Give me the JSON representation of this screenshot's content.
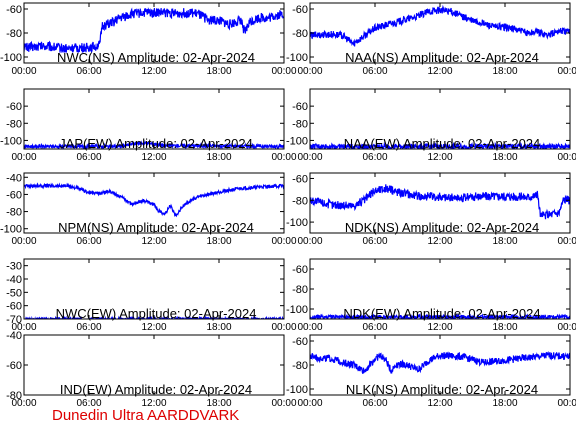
{
  "footer": "Dunedin Ultra AARDDVARK",
  "colors": {
    "trace": "#0000ff",
    "axes": "#000000",
    "footer": "#dd0000",
    "background": "#ffffff"
  },
  "x_ticks": [
    "00:00",
    "06:00",
    "12:00",
    "18:00",
    "00:00"
  ],
  "chart_data": [
    {
      "type": "line",
      "title": "NWC(NS) Amplitude: 02-Apr-2024",
      "ylim": [
        -105,
        -55
      ],
      "yticks": [
        -100,
        -80,
        -60
      ],
      "series": [
        {
          "x": [
            0,
            2,
            4,
            6,
            7,
            7.2,
            8,
            9,
            10,
            11,
            12,
            13,
            14,
            15,
            16,
            17,
            18,
            19,
            20,
            20.4,
            20.8,
            21,
            21.5,
            22,
            22.5,
            23,
            24
          ],
          "y": [
            -92,
            -91,
            -93,
            -92,
            -90,
            -74,
            -72,
            -67,
            -64,
            -63,
            -63,
            -63,
            -64,
            -63,
            -64,
            -69,
            -70,
            -73,
            -69,
            -80,
            -71,
            -70,
            -68,
            -67,
            -68,
            -66,
            -64
          ],
          "noise": 4
        }
      ]
    },
    {
      "type": "line",
      "title": "NAA(NS) Amplitude: 02-Apr-2024",
      "ylim": [
        -105,
        -55
      ],
      "yticks": [
        -100,
        -80,
        -60
      ],
      "series": [
        {
          "x": [
            0,
            2,
            3,
            4,
            6,
            8,
            10,
            11,
            12,
            13,
            14,
            15,
            16,
            17,
            18,
            19,
            20,
            21,
            22,
            23,
            24
          ],
          "y": [
            -82,
            -81,
            -82,
            -89,
            -76,
            -71,
            -66,
            -62,
            -61,
            -62,
            -66,
            -70,
            -72,
            -75,
            -75,
            -77,
            -80,
            -79,
            -82,
            -78,
            -79
          ],
          "noise": 3
        }
      ]
    },
    {
      "type": "line",
      "title": "JAP(EW) Amplitude: 02-Apr-2024",
      "ylim": [
        -110,
        -40
      ],
      "yticks": [
        -100,
        -80,
        -60
      ],
      "series": [
        {
          "x": [
            0,
            9,
            10,
            11,
            12,
            13,
            24
          ],
          "y": [
            -107,
            -107,
            -104,
            -103,
            -104,
            -106,
            -107
          ],
          "noise": 2
        }
      ]
    },
    {
      "type": "line",
      "title": "NAA(EW) Amplitude: 02-Apr-2024",
      "ylim": [
        -110,
        -40
      ],
      "yticks": [
        -100,
        -80,
        -60
      ],
      "series": [
        {
          "x": [
            0,
            24
          ],
          "y": [
            -107,
            -107
          ],
          "noise": 3
        }
      ]
    },
    {
      "type": "line",
      "title": "NPM(NS) Amplitude: 02-Apr-2024",
      "ylim": [
        -105,
        -35
      ],
      "yticks": [
        -100,
        -80,
        -60,
        -40
      ],
      "series": [
        {
          "x": [
            0,
            4,
            5,
            6,
            7,
            8,
            8.5,
            10,
            11,
            12,
            12.5,
            13,
            13.5,
            14,
            14.5,
            15,
            16,
            18,
            20,
            22,
            24
          ],
          "y": [
            -50,
            -50,
            -53,
            -58,
            -59,
            -56,
            -60,
            -71,
            -67,
            -72,
            -80,
            -83,
            -73,
            -85,
            -76,
            -70,
            -63,
            -57,
            -53,
            -51,
            -50
          ],
          "noise": 2
        }
      ]
    },
    {
      "type": "line",
      "title": "NDK(NS) Amplitude: 02-Apr-2024",
      "ylim": [
        -110,
        -55
      ],
      "yticks": [
        -100,
        -80,
        -60
      ],
      "series": [
        {
          "x": [
            0,
            2,
            4,
            5,
            6,
            7,
            8,
            10,
            12,
            14,
            16,
            18,
            20,
            21,
            21.3,
            22,
            23,
            23.4,
            24
          ],
          "y": [
            -80,
            -84,
            -85,
            -80,
            -71,
            -69,
            -72,
            -76,
            -77,
            -78,
            -76,
            -76,
            -77,
            -75,
            -95,
            -93,
            -91,
            -79,
            -80
          ],
          "noise": 4
        }
      ]
    },
    {
      "type": "line",
      "title": "NWC(EW) Amplitude: 02-Apr-2024",
      "ylim": [
        -70,
        -25
      ],
      "yticks": [
        -70,
        -60,
        -50,
        -40,
        -30
      ],
      "series": [
        {
          "x": [
            0,
            24
          ],
          "y": [
            -70,
            -70
          ],
          "noise": 1
        }
      ]
    },
    {
      "type": "line",
      "title": "NDK(EW) Amplitude: 02-Apr-2024",
      "ylim": [
        -110,
        -50
      ],
      "yticks": [
        -100,
        -80,
        -60
      ],
      "series": [
        {
          "x": [
            0,
            24
          ],
          "y": [
            -108,
            -108
          ],
          "noise": 2
        }
      ]
    },
    {
      "type": "line",
      "title": "IND(EW) Amplitude: 02-Apr-2024",
      "ylim": [
        -80,
        -40
      ],
      "yticks": [
        -80,
        -60,
        -40
      ],
      "series": []
    },
    {
      "type": "line",
      "title": "NLK(NS) Amplitude: 02-Apr-2024",
      "ylim": [
        -105,
        -55
      ],
      "yticks": [
        -100,
        -80,
        -60
      ],
      "series": [
        {
          "x": [
            0,
            2,
            4,
            5,
            6,
            6.5,
            7,
            7.5,
            8,
            9,
            10,
            11,
            12,
            14,
            16,
            18,
            20,
            22,
            24
          ],
          "y": [
            -73,
            -75,
            -80,
            -85,
            -75,
            -72,
            -76,
            -85,
            -79,
            -80,
            -84,
            -76,
            -72,
            -73,
            -78,
            -76,
            -74,
            -72,
            -73
          ],
          "noise": 3
        }
      ]
    }
  ]
}
